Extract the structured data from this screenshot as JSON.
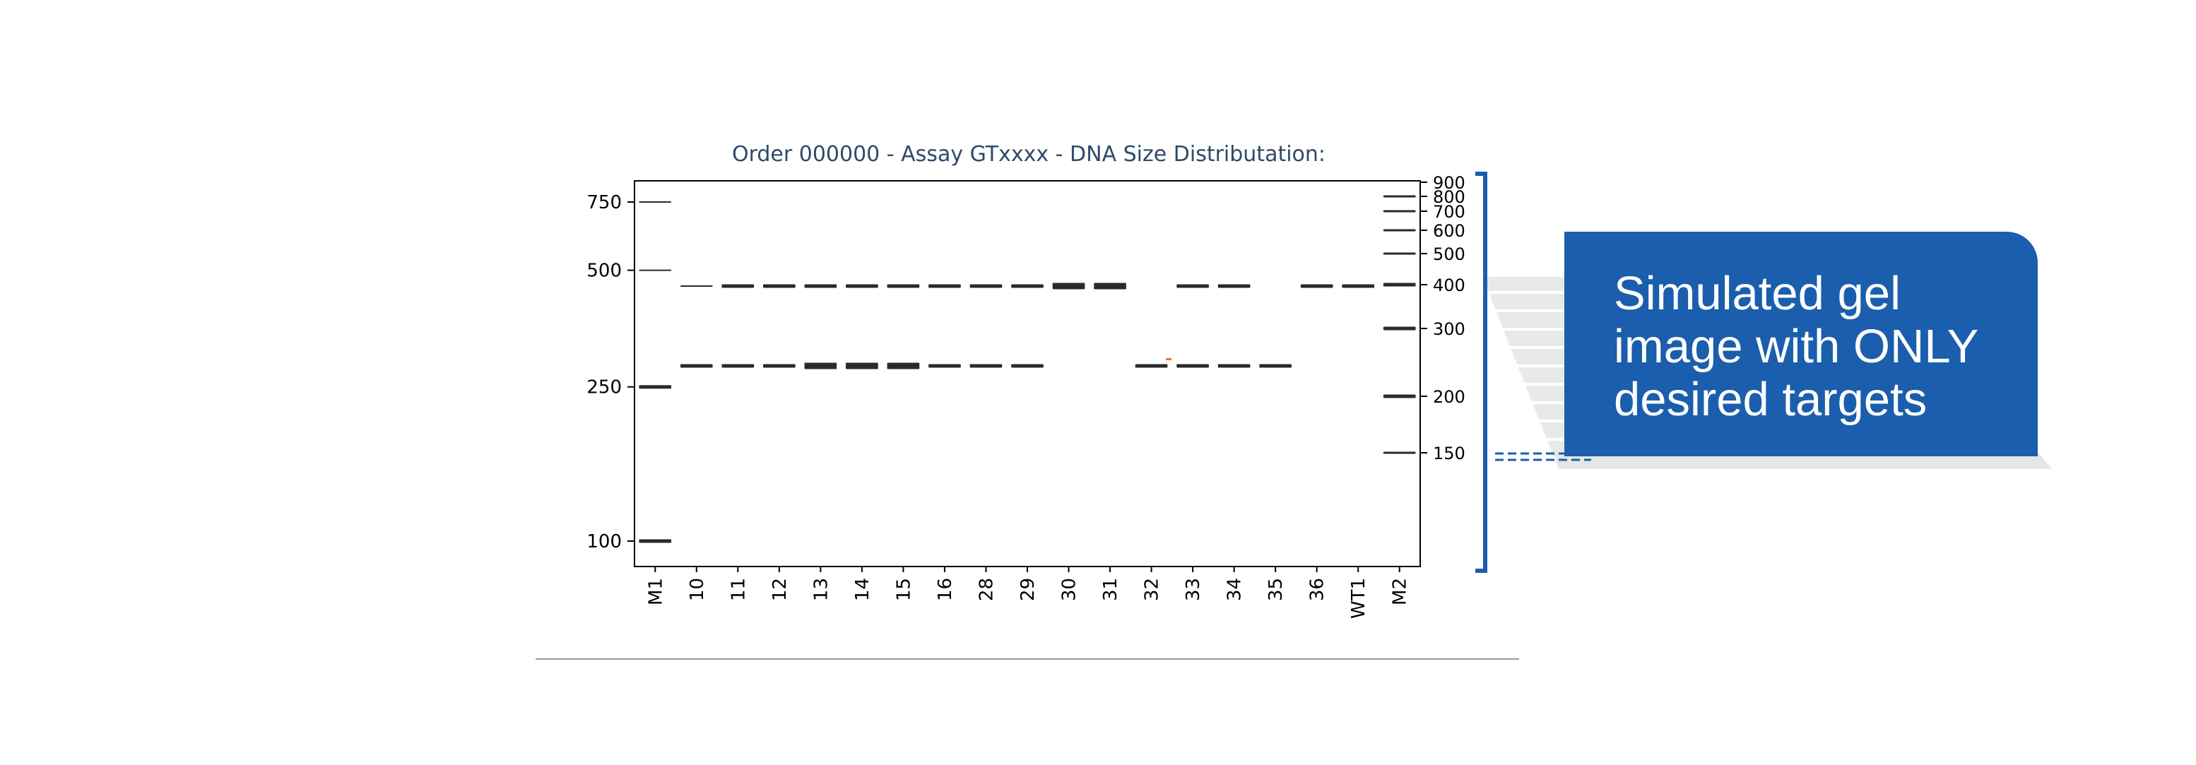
{
  "callout": {
    "text": "Simulated gel image with ONLY desired targets"
  },
  "colors": {
    "accent": "#1a5ead",
    "band": "#2a2a2a",
    "frame": "#000000",
    "title": "#2e4a68",
    "artifact": "#e8732a"
  },
  "chart_data": {
    "type": "gel",
    "title": "Order 000000 - Assay GTxxxx - DNA Size Distributation:",
    "xlabel": "",
    "ylabel": "",
    "y_scale": "log",
    "ylim": [
      90,
      900
    ],
    "lanes": [
      "M1",
      "10",
      "11",
      "12",
      "13",
      "14",
      "15",
      "16",
      "28",
      "29",
      "30",
      "31",
      "32",
      "33",
      "34",
      "35",
      "36",
      "WT1",
      "M2"
    ],
    "left_axis_ticks": [
      750,
      500,
      250,
      100
    ],
    "right_axis_ticks": [
      900,
      800,
      700,
      600,
      500,
      400,
      300,
      200,
      150
    ],
    "bands": [
      {
        "lane": "M1",
        "sizes": [
          750,
          500,
          250,
          100
        ]
      },
      {
        "lane": "10",
        "sizes": [
          380,
          240
        ]
      },
      {
        "lane": "11",
        "sizes": [
          380,
          240
        ]
      },
      {
        "lane": "12",
        "sizes": [
          380,
          240
        ]
      },
      {
        "lane": "13",
        "sizes": [
          380,
          240
        ]
      },
      {
        "lane": "14",
        "sizes": [
          380,
          240
        ]
      },
      {
        "lane": "15",
        "sizes": [
          380,
          240
        ]
      },
      {
        "lane": "16",
        "sizes": [
          380,
          240
        ]
      },
      {
        "lane": "28",
        "sizes": [
          380,
          240
        ]
      },
      {
        "lane": "29",
        "sizes": [
          380,
          240
        ]
      },
      {
        "lane": "30",
        "sizes": [
          380
        ]
      },
      {
        "lane": "31",
        "sizes": [
          380
        ]
      },
      {
        "lane": "32",
        "sizes": [
          240
        ]
      },
      {
        "lane": "33",
        "sizes": [
          380,
          240
        ]
      },
      {
        "lane": "34",
        "sizes": [
          380,
          240
        ]
      },
      {
        "lane": "35",
        "sizes": [
          240
        ]
      },
      {
        "lane": "36",
        "sizes": [
          380
        ]
      },
      {
        "lane": "WT1",
        "sizes": [
          380
        ]
      },
      {
        "lane": "M2",
        "sizes": [
          800,
          700,
          600,
          500,
          400,
          300,
          200,
          150
        ]
      }
    ]
  }
}
